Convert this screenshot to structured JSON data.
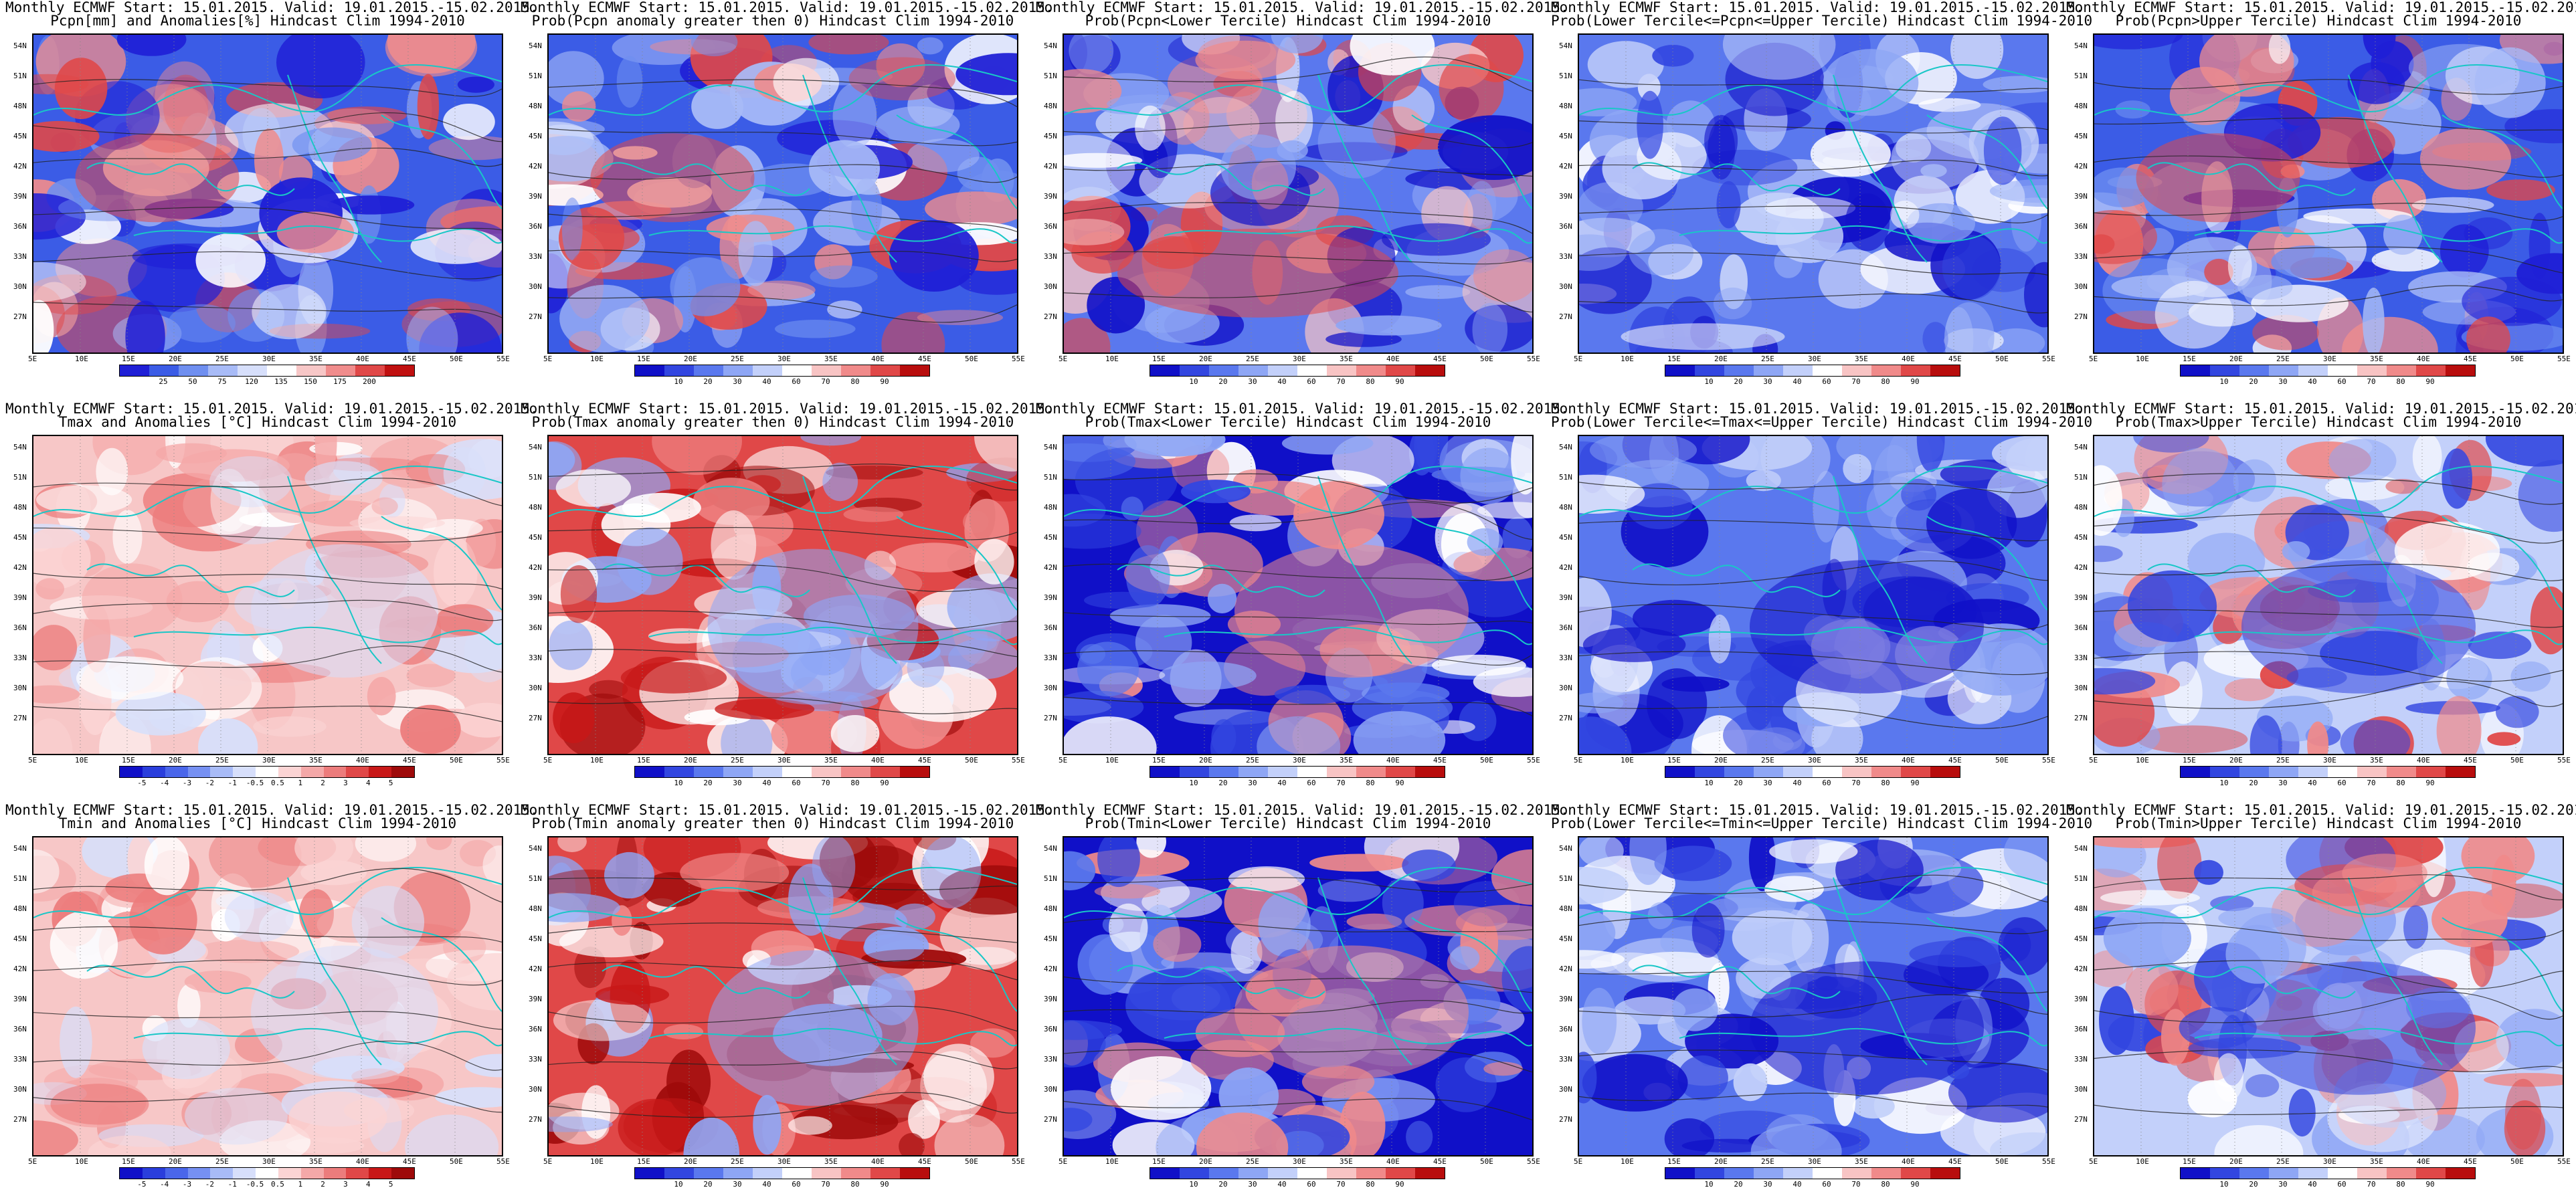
{
  "figure": {
    "title_line1": "Monthly ECMWF Start: 15.01.2015. Valid: 19.01.2015.-15.02.2015.",
    "lat_labels": [
      "54N",
      "51N",
      "48N",
      "45N",
      "42N",
      "39N",
      "36N",
      "33N",
      "30N",
      "27N"
    ],
    "lon_labels": [
      "5E",
      "10E",
      "15E",
      "20E",
      "25E",
      "30E",
      "35E",
      "40E",
      "45E",
      "50E",
      "55E"
    ]
  },
  "colorbars": {
    "precip_anom": {
      "ticks": [
        "25",
        "50",
        "75",
        "120",
        "135",
        "150",
        "175",
        "200"
      ],
      "colors": [
        "#1f1fd6",
        "#3b5ce6",
        "#6f8ff0",
        "#a8bbf7",
        "#d7dffb",
        "#ffffff",
        "#f7c7c7",
        "#f08c8c",
        "#e04848",
        "#c01010"
      ]
    },
    "prob": {
      "ticks": [
        "10",
        "20",
        "30",
        "40",
        "60",
        "70",
        "80",
        "90"
      ],
      "colors": [
        "#1010c8",
        "#3246e0",
        "#5a78ee",
        "#8ea6f5",
        "#c3d0fa",
        "#ffffff",
        "#f8c4c4",
        "#f08a8a",
        "#e04848",
        "#b80d0d"
      ]
    },
    "temp_anom": {
      "ticks": [
        "-5",
        "-4",
        "-3",
        "-2",
        "-1",
        "-0.5",
        "0.5",
        "1",
        "2",
        "3",
        "4",
        "5"
      ],
      "colors": [
        "#1010c8",
        "#2a3edc",
        "#4a66ea",
        "#7690f2",
        "#a8bbf7",
        "#d7dffb",
        "#ffffff",
        "#fbd4d4",
        "#f4a8a8",
        "#ec7c7c",
        "#e04848",
        "#c81818",
        "#9e0a0a"
      ]
    }
  },
  "panels": [
    {
      "subtitle": "Pcpn[mm] and Anomalies[%] Hindcast Clim 1994-2010",
      "palette": "precip",
      "cbar": "precip_anom"
    },
    {
      "subtitle": "Prob(Pcpn anomaly greater then 0) Hindcast Clim 1994-2010",
      "palette": "precip",
      "cbar": "prob"
    },
    {
      "subtitle": "Prob(Pcpn<Lower Tercile) Hindcast Clim 1994-2010",
      "palette": "precip_low",
      "cbar": "prob"
    },
    {
      "subtitle": "Prob(Lower Tercile<=Pcpn<=Upper Tercile) Hindcast Clim 1994-2010",
      "palette": "precip_mid",
      "cbar": "prob"
    },
    {
      "subtitle": "Prob(Pcpn>Upper Tercile) Hindcast Clim 1994-2010",
      "palette": "precip",
      "cbar": "prob"
    },
    {
      "subtitle": "Tmax and Anomalies [°C] Hindcast Clim 1994-2010",
      "palette": "warm_light",
      "cbar": "temp_anom"
    },
    {
      "subtitle": "Prob(Tmax anomaly greater then 0) Hindcast Clim 1994-2010",
      "palette": "warm_strong",
      "cbar": "prob"
    },
    {
      "subtitle": "Prob(Tmax<Lower Tercile) Hindcast Clim 1994-2010",
      "palette": "cold_strong",
      "cbar": "prob"
    },
    {
      "subtitle": "Prob(Lower Tercile<=Tmax<=Upper Tercile) Hindcast Clim 1994-2010",
      "palette": "cold_mid",
      "cbar": "prob"
    },
    {
      "subtitle": "Prob(Tmax>Upper Tercile) Hindcast Clim 1994-2010",
      "palette": "warm_mid",
      "cbar": "prob"
    },
    {
      "subtitle": "Tmin and Anomalies [°C] Hindcast Clim 1994-2010",
      "palette": "warm_light",
      "cbar": "temp_anom"
    },
    {
      "subtitle": "Prob(Tmin anomaly greater then 0) Hindcast Clim 1994-2010",
      "palette": "warm_strong",
      "cbar": "prob"
    },
    {
      "subtitle": "Prob(Tmin<Lower Tercile) Hindcast Clim 1994-2010",
      "palette": "cold_strong",
      "cbar": "prob"
    },
    {
      "subtitle": "Prob(Lower Tercile<=Tmin<=Upper Tercile) Hindcast Clim 1994-2010",
      "palette": "cold_mid",
      "cbar": "prob"
    },
    {
      "subtitle": "Prob(Tmin>Upper Tercile) Hindcast Clim 1994-2010",
      "palette": "warm_mid",
      "cbar": "prob"
    }
  ]
}
